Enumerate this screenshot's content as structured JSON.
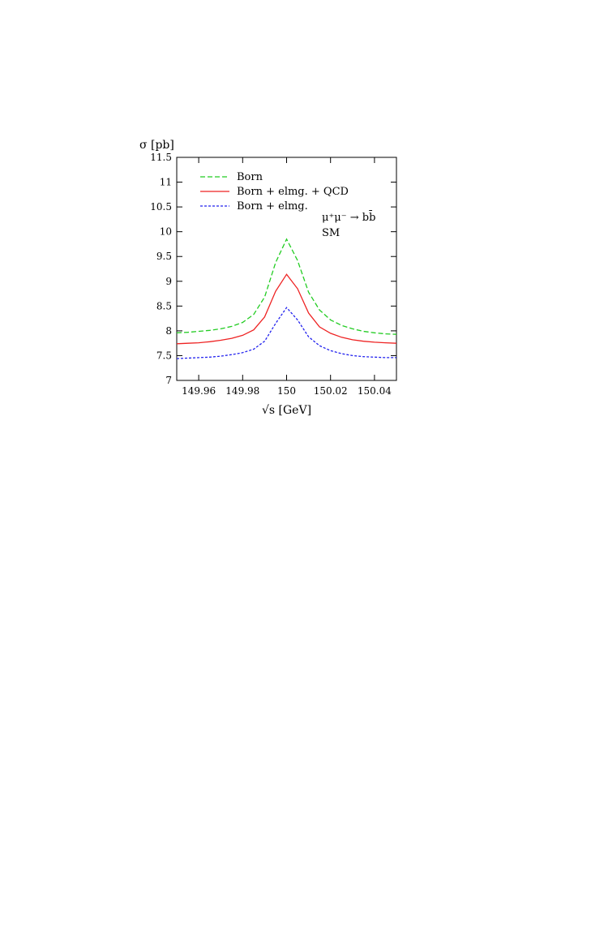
{
  "chart_data": {
    "type": "line",
    "ylabel": "σ [pb]",
    "xlabel": "√s [GeV]",
    "xlim": [
      149.95,
      150.05
    ],
    "ylim": [
      7,
      11.5
    ],
    "xticks": [
      149.96,
      149.98,
      150,
      150.02,
      150.04
    ],
    "xtick_labels": [
      "149.96",
      "149.98",
      "150",
      "150.02",
      "150.04"
    ],
    "yticks": [
      7,
      7.5,
      8,
      8.5,
      9,
      9.5,
      10,
      10.5,
      11,
      11.5
    ],
    "ytick_labels": [
      "7",
      "7.5",
      "8",
      "8.5",
      "9",
      "9.5",
      "10",
      "10.5",
      "11",
      "11.5"
    ],
    "annotations": [
      "μ⁺μ⁻ → bb̄",
      "SM"
    ],
    "legend_position": "top-left",
    "grid": false,
    "x": [
      149.95,
      149.955,
      149.96,
      149.965,
      149.97,
      149.975,
      149.98,
      149.985,
      149.99,
      149.995,
      150.0,
      150.005,
      150.01,
      150.015,
      150.02,
      150.025,
      150.03,
      150.035,
      150.04,
      150.045,
      150.05
    ],
    "series": [
      {
        "name": "Born",
        "color": "#22cc22",
        "dash": "dashed",
        "values": [
          7.96,
          7.97,
          7.99,
          8.01,
          8.04,
          8.09,
          8.17,
          8.33,
          8.68,
          9.38,
          9.85,
          9.42,
          8.78,
          8.42,
          8.22,
          8.11,
          8.04,
          7.99,
          7.96,
          7.94,
          7.93
        ]
      },
      {
        "name": "Born + elmg. + QCD",
        "color": "#ee2222",
        "dash": "solid",
        "values": [
          7.74,
          7.75,
          7.76,
          7.78,
          7.81,
          7.85,
          7.91,
          8.02,
          8.28,
          8.8,
          9.14,
          8.85,
          8.36,
          8.08,
          7.95,
          7.87,
          7.82,
          7.79,
          7.77,
          7.76,
          7.75
        ]
      },
      {
        "name": "Born + elmg.",
        "color": "#2222ee",
        "dash": "dotted",
        "values": [
          7.44,
          7.45,
          7.46,
          7.47,
          7.49,
          7.52,
          7.56,
          7.63,
          7.79,
          8.15,
          8.47,
          8.22,
          7.88,
          7.7,
          7.6,
          7.54,
          7.5,
          7.48,
          7.47,
          7.46,
          7.46
        ]
      }
    ]
  }
}
